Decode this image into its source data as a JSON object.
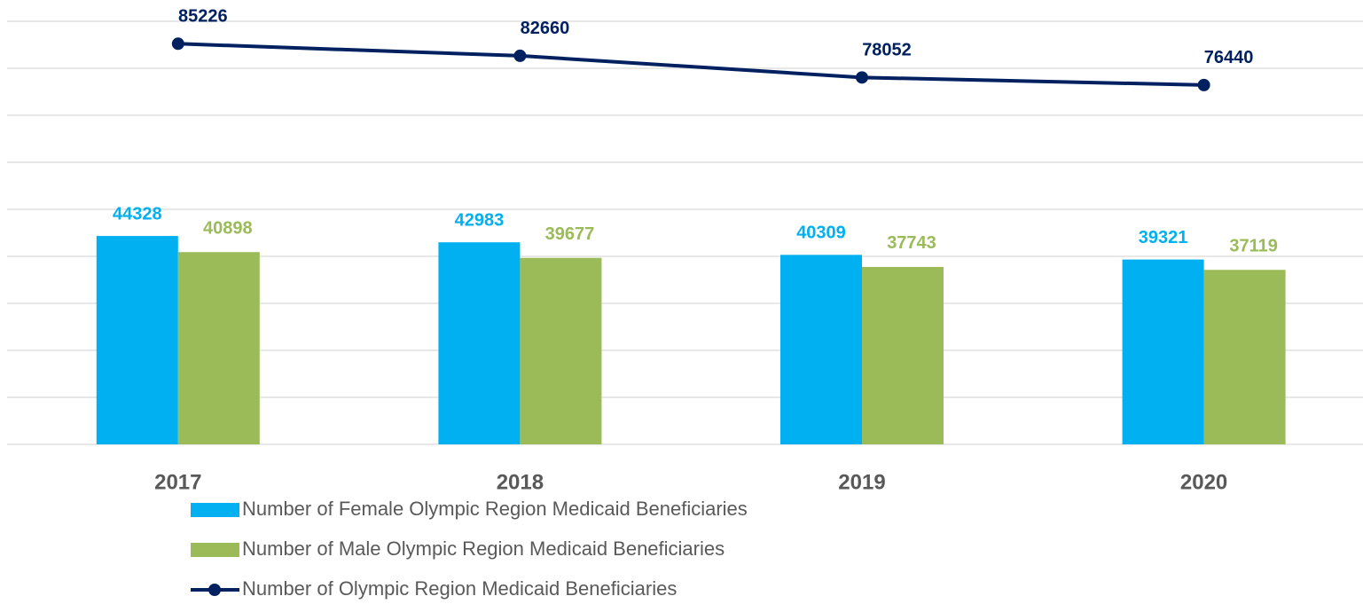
{
  "chart_data": {
    "type": "bar_line",
    "categories": [
      "2017",
      "2018",
      "2019",
      "2020"
    ],
    "series": [
      {
        "name": "Number of Female Olympic Region Medicaid Beneficiaries",
        "type": "bar",
        "color": "#00b0f0",
        "values": [
          44328,
          42983,
          40309,
          39321
        ]
      },
      {
        "name": "Number of Male Olympic Region Medicaid Beneficiaries",
        "type": "bar",
        "color": "#9bbb59",
        "values": [
          40898,
          39677,
          37743,
          37119
        ]
      },
      {
        "name": "Number of Olympic Region Medicaid Beneficiaries",
        "type": "line",
        "color": "#002060",
        "values": [
          85226,
          82660,
          78052,
          76440
        ]
      }
    ],
    "ylim": [
      0,
      90000
    ],
    "yticks": [
      0,
      10000,
      20000,
      30000,
      40000,
      50000,
      60000,
      70000,
      80000,
      90000
    ],
    "grid": true,
    "legend": "bottom"
  }
}
